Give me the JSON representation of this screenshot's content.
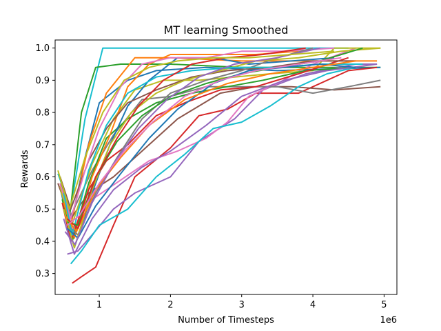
{
  "chart_data": {
    "type": "line",
    "title": "MT learning Smoothed",
    "xlabel": "Number of Timesteps",
    "ylabel": "Rewards",
    "x_offset_label": "1e6",
    "xlim": [
      0.38,
      5.18
    ],
    "ylim": [
      0.235,
      1.025
    ],
    "x_ticks": [
      1,
      2,
      3,
      4,
      5
    ],
    "x_tick_labels": [
      "1",
      "2",
      "3",
      "4",
      "5"
    ],
    "y_ticks": [
      0.3,
      0.4,
      0.5,
      0.6,
      0.7,
      0.8,
      0.9,
      1.0
    ],
    "y_tick_labels": [
      "0.3",
      "0.4",
      "0.5",
      "0.6",
      "0.7",
      "0.8",
      "0.9",
      "1.0"
    ],
    "grid": false,
    "legend": "none",
    "series": [
      {
        "color": "#17becf",
        "x": [
          0.42,
          0.6,
          0.8,
          1.05,
          1.5,
          2.5,
          3.5,
          4.5
        ],
        "y": [
          0.61,
          0.5,
          0.78,
          1.0,
          1.0,
          1.0,
          1.0,
          1.0
        ]
      },
      {
        "color": "#2ca02c",
        "x": [
          0.45,
          0.58,
          0.75,
          0.95,
          1.3,
          2.0,
          3.0,
          4.0,
          4.95
        ],
        "y": [
          0.6,
          0.47,
          0.8,
          0.94,
          0.95,
          0.95,
          0.94,
          0.94,
          0.94
        ]
      },
      {
        "color": "#1f77b4",
        "x": [
          0.45,
          0.58,
          0.8,
          1.0,
          1.4,
          1.8,
          2.5,
          3.5,
          4.95
        ],
        "y": [
          0.57,
          0.43,
          0.66,
          0.83,
          0.9,
          0.93,
          0.94,
          0.93,
          0.94
        ]
      },
      {
        "color": "#ff7f0e",
        "x": [
          0.45,
          0.6,
          0.85,
          1.1,
          1.5,
          2.0,
          3.0,
          4.0,
          4.9
        ],
        "y": [
          0.58,
          0.45,
          0.7,
          0.86,
          0.97,
          0.97,
          0.96,
          0.96,
          0.96
        ]
      },
      {
        "color": "#d62728",
        "x": [
          0.62,
          0.75,
          0.95,
          1.2,
          1.5,
          2.0,
          2.4,
          2.8,
          3.2,
          3.8,
          4.5,
          4.9
        ],
        "y": [
          0.27,
          0.29,
          0.32,
          0.45,
          0.6,
          0.69,
          0.79,
          0.81,
          0.86,
          0.86,
          0.93,
          0.94
        ]
      },
      {
        "color": "#9467bd",
        "x": [
          0.55,
          0.7,
          0.9,
          1.2,
          1.5,
          2.0,
          2.4,
          2.9,
          3.3,
          3.9,
          4.6,
          4.9
        ],
        "y": [
          0.36,
          0.37,
          0.42,
          0.5,
          0.55,
          0.6,
          0.71,
          0.78,
          0.87,
          0.92,
          0.95,
          0.95
        ]
      },
      {
        "color": "#8c564b",
        "x": [
          0.42,
          0.6,
          0.85,
          1.2,
          1.6,
          2.1,
          2.7,
          3.2,
          3.7,
          4.3,
          4.95
        ],
        "y": [
          0.58,
          0.47,
          0.55,
          0.6,
          0.68,
          0.78,
          0.86,
          0.88,
          0.88,
          0.87,
          0.88
        ]
      },
      {
        "color": "#e377c2",
        "x": [
          0.48,
          0.65,
          0.9,
          1.3,
          1.7,
          2.1,
          2.5,
          2.8,
          3.1,
          3.5,
          4.0,
          4.6
        ],
        "y": [
          0.55,
          0.42,
          0.53,
          0.59,
          0.65,
          0.68,
          0.72,
          0.77,
          0.85,
          0.89,
          0.95,
          1.0
        ]
      },
      {
        "color": "#7f7f7f",
        "x": [
          0.45,
          0.6,
          0.9,
          1.2,
          1.6,
          2.0,
          2.5,
          3.0,
          3.5,
          4.0,
          4.5,
          4.95
        ],
        "y": [
          0.6,
          0.48,
          0.62,
          0.73,
          0.84,
          0.85,
          0.88,
          0.88,
          0.88,
          0.86,
          0.88,
          0.9
        ]
      },
      {
        "color": "#bcbd22",
        "x": [
          0.45,
          0.6,
          0.9,
          1.2,
          1.5,
          1.9,
          2.4,
          2.9,
          3.4,
          4.0,
          4.3,
          4.95
        ],
        "y": [
          0.57,
          0.44,
          0.64,
          0.78,
          0.87,
          0.9,
          0.9,
          0.91,
          0.92,
          0.93,
          1.0,
          1.0
        ]
      },
      {
        "color": "#17becf",
        "x": [
          0.6,
          0.75,
          1.0,
          1.4,
          1.8,
          2.2,
          2.6,
          3.0,
          3.4,
          3.8,
          4.2,
          4.6
        ],
        "y": [
          0.33,
          0.37,
          0.45,
          0.5,
          0.6,
          0.67,
          0.75,
          0.77,
          0.82,
          0.88,
          0.92,
          0.94
        ]
      },
      {
        "color": "#2ca02c",
        "x": [
          0.48,
          0.62,
          0.85,
          1.1,
          1.4,
          1.8,
          2.3,
          2.8,
          3.3,
          3.9,
          4.6
        ],
        "y": [
          0.53,
          0.4,
          0.58,
          0.72,
          0.78,
          0.83,
          0.86,
          0.88,
          0.9,
          0.93,
          0.94
        ]
      },
      {
        "color": "#1f77b4",
        "x": [
          0.5,
          0.65,
          0.9,
          1.15,
          1.4,
          1.7,
          2.1,
          2.6,
          3.1,
          3.7,
          4.3
        ],
        "y": [
          0.5,
          0.38,
          0.55,
          0.7,
          0.82,
          0.9,
          0.97,
          0.97,
          0.95,
          0.96,
          0.97
        ]
      },
      {
        "color": "#ff7f0e",
        "x": [
          0.5,
          0.65,
          0.9,
          1.15,
          1.4,
          1.7,
          2.0,
          2.6,
          3.2,
          3.8
        ],
        "y": [
          0.52,
          0.41,
          0.6,
          0.73,
          0.88,
          0.95,
          0.98,
          0.98,
          0.98,
          0.99
        ]
      },
      {
        "color": "#d62728",
        "x": [
          0.48,
          0.6,
          0.85,
          1.1,
          1.4,
          1.8,
          2.2,
          2.7,
          3.2,
          3.8,
          4.5
        ],
        "y": [
          0.52,
          0.4,
          0.56,
          0.65,
          0.7,
          0.79,
          0.83,
          0.87,
          0.88,
          0.92,
          0.97
        ]
      },
      {
        "color": "#9467bd",
        "x": [
          0.5,
          0.65,
          0.9,
          1.2,
          1.6,
          2.0,
          2.5,
          3.0,
          3.6,
          4.2,
          4.9
        ],
        "y": [
          0.47,
          0.36,
          0.47,
          0.56,
          0.63,
          0.68,
          0.76,
          0.85,
          0.9,
          0.93,
          0.95
        ]
      },
      {
        "color": "#8c564b",
        "x": [
          0.45,
          0.6,
          0.85,
          1.1,
          1.4,
          1.8,
          2.3,
          2.8,
          3.4,
          4.0,
          4.6
        ],
        "y": [
          0.6,
          0.5,
          0.65,
          0.75,
          0.83,
          0.87,
          0.91,
          0.93,
          0.94,
          0.96,
          0.96
        ]
      },
      {
        "color": "#e377c2",
        "x": [
          0.45,
          0.6,
          0.8,
          1.0,
          1.3,
          1.6,
          2.0,
          2.5,
          3.0,
          3.6,
          4.3
        ],
        "y": [
          0.58,
          0.47,
          0.62,
          0.75,
          0.88,
          0.95,
          0.97,
          0.97,
          0.99,
          0.99,
          1.0
        ]
      },
      {
        "color": "#7f7f7f",
        "x": [
          0.55,
          0.7,
          0.95,
          1.25,
          1.6,
          2.0,
          2.5,
          3.0,
          3.5,
          4.0
        ],
        "y": [
          0.45,
          0.42,
          0.55,
          0.66,
          0.78,
          0.86,
          0.9,
          0.93,
          0.97,
          1.0
        ]
      },
      {
        "color": "#bcbd22",
        "x": [
          0.5,
          0.65,
          0.9,
          1.15,
          1.45,
          1.8,
          2.2,
          2.7,
          3.2,
          3.8,
          4.4,
          4.95
        ],
        "y": [
          0.5,
          0.38,
          0.56,
          0.7,
          0.8,
          0.86,
          0.9,
          0.93,
          0.96,
          0.97,
          0.99,
          1.0
        ]
      },
      {
        "color": "#17becf",
        "x": [
          0.5,
          0.62,
          0.85,
          1.1,
          1.4,
          1.8,
          2.3,
          2.9,
          3.5,
          4.1,
          4.7
        ],
        "y": [
          0.55,
          0.42,
          0.62,
          0.76,
          0.86,
          0.91,
          0.93,
          0.94,
          0.94,
          0.95,
          0.95
        ]
      },
      {
        "color": "#2ca02c",
        "x": [
          0.55,
          0.7,
          0.95,
          1.25,
          1.6,
          2.0,
          2.5,
          3.0,
          3.5,
          4.1,
          4.7
        ],
        "y": [
          0.46,
          0.45,
          0.6,
          0.71,
          0.79,
          0.85,
          0.89,
          0.92,
          0.94,
          0.96,
          1.0
        ]
      },
      {
        "color": "#1f77b4",
        "x": [
          0.55,
          0.7,
          0.95,
          1.3,
          1.7,
          2.1,
          2.6,
          3.1,
          3.6,
          4.1,
          4.6
        ],
        "y": [
          0.44,
          0.41,
          0.51,
          0.61,
          0.72,
          0.81,
          0.89,
          0.93,
          0.94,
          0.95,
          0.94
        ]
      },
      {
        "color": "#ff7f0e",
        "x": [
          0.52,
          0.68,
          0.95,
          1.3,
          1.7,
          2.2,
          2.8,
          3.4,
          4.0,
          4.6
        ],
        "y": [
          0.48,
          0.43,
          0.56,
          0.66,
          0.76,
          0.84,
          0.89,
          0.92,
          0.94,
          0.96
        ]
      },
      {
        "color": "#d62728",
        "x": [
          0.55,
          0.7,
          0.95,
          1.25,
          1.55,
          1.9,
          2.3,
          2.8,
          3.3,
          3.9
        ],
        "y": [
          0.47,
          0.44,
          0.6,
          0.72,
          0.82,
          0.9,
          0.95,
          0.97,
          0.98,
          1.0
        ]
      },
      {
        "color": "#9467bd",
        "x": [
          0.52,
          0.66,
          0.9,
          1.2,
          1.55,
          1.95,
          2.4,
          2.9,
          3.5,
          4.1
        ],
        "y": [
          0.43,
          0.39,
          0.52,
          0.64,
          0.75,
          0.84,
          0.91,
          0.95,
          0.97,
          1.0
        ]
      },
      {
        "color": "#e377c2",
        "x": [
          0.55,
          0.72,
          1.0,
          1.35,
          1.75,
          2.2,
          2.7,
          3.2,
          3.8,
          4.4
        ],
        "y": [
          0.45,
          0.48,
          0.58,
          0.68,
          0.77,
          0.85,
          0.9,
          0.93,
          0.95,
          0.97
        ]
      },
      {
        "color": "#bcbd22",
        "x": [
          0.42,
          0.58,
          0.8,
          1.05,
          1.35,
          1.7,
          2.1,
          2.6,
          3.1,
          3.7,
          4.3
        ],
        "y": [
          0.62,
          0.5,
          0.66,
          0.8,
          0.9,
          0.94,
          0.96,
          0.97,
          0.97,
          0.98,
          0.99
        ]
      }
    ]
  }
}
